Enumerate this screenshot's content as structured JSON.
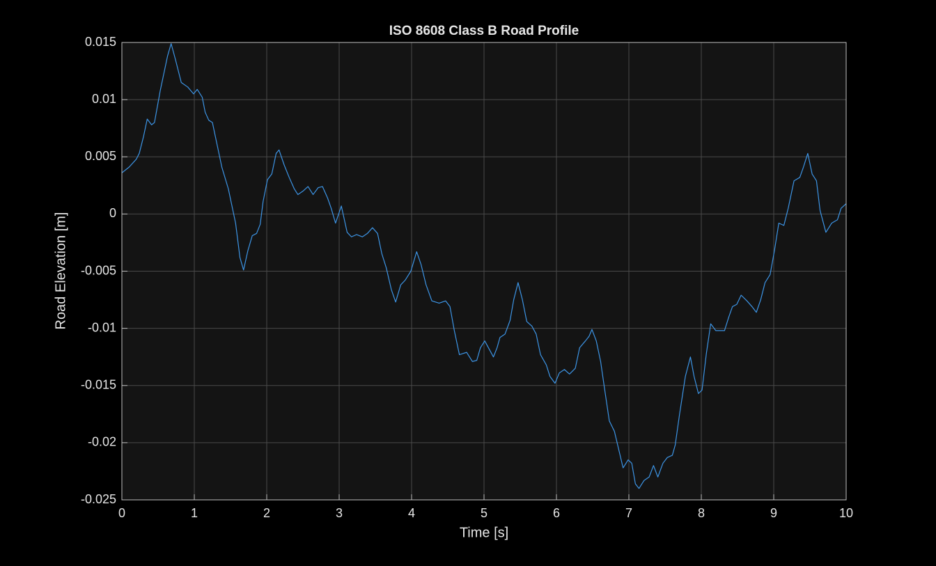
{
  "chart_data": {
    "type": "line",
    "title": "ISO 8608 Class B Road Profile",
    "x_label": "Time [s]",
    "y_label": "Road Elevation [m]",
    "xlim": [
      0,
      10
    ],
    "ylim": [
      -0.025,
      0.015
    ],
    "xticks": [
      0,
      1,
      2,
      3,
      4,
      5,
      6,
      7,
      8,
      9,
      10
    ],
    "yticks": [
      -0.025,
      -0.02,
      -0.015,
      -0.01,
      -0.005,
      0,
      0.005,
      0.01,
      0.015
    ],
    "grid": true,
    "x": [
      0,
      0.1,
      0.2,
      0.24,
      0.3,
      0.35,
      0.41,
      0.45,
      0.53,
      0.63,
      0.68,
      0.74,
      0.82,
      0.91,
      0.99,
      1.04,
      1.11,
      1.15,
      1.2,
      1.25,
      1.3,
      1.38,
      1.47,
      1.57,
      1.63,
      1.68,
      1.74,
      1.8,
      1.86,
      1.91,
      1.95,
      2.01,
      2.07,
      2.13,
      2.17,
      2.24,
      2.31,
      2.38,
      2.43,
      2.5,
      2.57,
      2.64,
      2.71,
      2.77,
      2.84,
      2.89,
      2.95,
      3.03,
      3.11,
      3.17,
      3.24,
      3.32,
      3.39,
      3.46,
      3.53,
      3.59,
      3.65,
      3.72,
      3.78,
      3.85,
      3.91,
      3.99,
      4.07,
      4.13,
      4.2,
      4.28,
      4.38,
      4.47,
      4.53,
      4.59,
      4.66,
      4.76,
      4.84,
      4.9,
      4.95,
      5.01,
      5.07,
      5.13,
      5.18,
      5.22,
      5.29,
      5.36,
      5.41,
      5.47,
      5.53,
      5.59,
      5.66,
      5.72,
      5.78,
      5.86,
      5.91,
      5.98,
      6.04,
      6.11,
      6.18,
      6.26,
      6.32,
      6.4,
      6.45,
      6.49,
      6.55,
      6.61,
      6.66,
      6.73,
      6.8,
      6.86,
      6.92,
      6.99,
      7.04,
      7.09,
      7.14,
      7.21,
      7.28,
      7.34,
      7.4,
      7.47,
      7.53,
      7.6,
      7.64,
      7.7,
      7.78,
      7.85,
      7.9,
      7.96,
      8.01,
      8.07,
      8.13,
      8.2,
      8.32,
      8.38,
      8.43,
      8.49,
      8.55,
      8.63,
      8.7,
      8.76,
      8.82,
      8.88,
      8.95,
      9.01,
      9.07,
      9.14,
      9.2,
      9.28,
      9.36,
      9.41,
      9.47,
      9.53,
      9.59,
      9.64,
      9.72,
      9.8,
      9.88,
      9.93,
      10
    ],
    "series": [
      {
        "color": "#3d95e6",
        "values": [
          0.0036,
          0.0041,
          0.0048,
          0.0053,
          0.0068,
          0.0083,
          0.0078,
          0.008,
          0.0108,
          0.0138,
          0.0149,
          0.0135,
          0.0115,
          0.0111,
          0.0105,
          0.0109,
          0.0102,
          0.0089,
          0.0082,
          0.008,
          0.0065,
          0.0041,
          0.0022,
          -0.0008,
          -0.0038,
          -0.0049,
          -0.0032,
          -0.0019,
          -0.0017,
          -0.0009,
          0.0011,
          0.003,
          0.0035,
          0.0053,
          0.0056,
          0.0043,
          0.0032,
          0.0022,
          0.0017,
          0.002,
          0.0024,
          0.0017,
          0.0023,
          0.0024,
          0.0014,
          0.0005,
          -0.0008,
          0.0007,
          -0.0016,
          -0.002,
          -0.0018,
          -0.002,
          -0.0017,
          -0.0012,
          -0.0017,
          -0.0035,
          -0.0047,
          -0.0066,
          -0.0077,
          -0.0062,
          -0.0058,
          -0.005,
          -0.0033,
          -0.0044,
          -0.0062,
          -0.0076,
          -0.0078,
          -0.0076,
          -0.0081,
          -0.0102,
          -0.0123,
          -0.0121,
          -0.0129,
          -0.0128,
          -0.0117,
          -0.0111,
          -0.0118,
          -0.0125,
          -0.0117,
          -0.0108,
          -0.0105,
          -0.0093,
          -0.0075,
          -0.006,
          -0.0075,
          -0.0094,
          -0.0098,
          -0.0105,
          -0.0123,
          -0.0132,
          -0.0142,
          -0.0148,
          -0.0139,
          -0.0136,
          -0.014,
          -0.0135,
          -0.0117,
          -0.0111,
          -0.0107,
          -0.0101,
          -0.0111,
          -0.0129,
          -0.0151,
          -0.0181,
          -0.019,
          -0.0206,
          -0.0222,
          -0.0215,
          -0.0218,
          -0.0236,
          -0.024,
          -0.0233,
          -0.023,
          -0.022,
          -0.023,
          -0.0218,
          -0.0213,
          -0.0211,
          -0.0202,
          -0.0175,
          -0.0142,
          -0.0125,
          -0.0142,
          -0.0157,
          -0.0154,
          -0.0122,
          -0.0096,
          -0.0102,
          -0.0102,
          -0.009,
          -0.0081,
          -0.0079,
          -0.0071,
          -0.0076,
          -0.0081,
          -0.0086,
          -0.0075,
          -0.006,
          -0.0053,
          -0.0032,
          -0.0008,
          -0.001,
          0.0005,
          0.0029,
          0.0032,
          0.0041,
          0.0053,
          0.0035,
          0.0029,
          0.0003,
          -0.0016,
          -0.0008,
          -0.0005,
          0.0005,
          0.0009
        ]
      }
    ]
  }
}
